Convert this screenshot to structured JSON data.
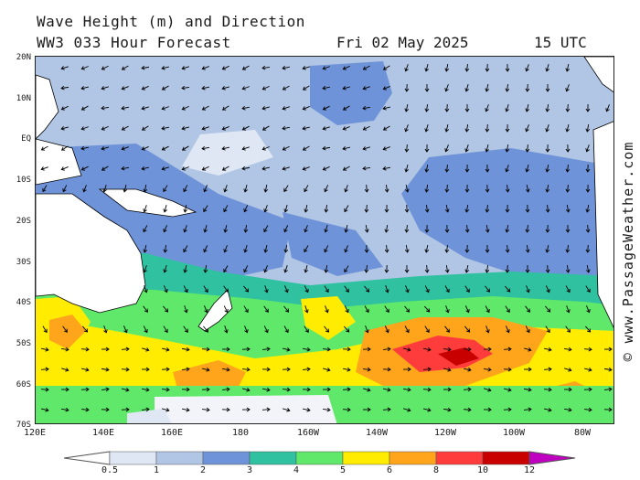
{
  "header": {
    "title": "Wave Height (m) and Direction",
    "model_line": "WW3 033 Hour Forecast",
    "date": "Fri 02 May 2025",
    "time": "15 UTC"
  },
  "credit": "© www.PassageWeather.com",
  "axes": {
    "lat_labels": [
      "20N",
      "10N",
      "EQ",
      "10S",
      "20S",
      "30S",
      "40S",
      "50S",
      "60S",
      "70S"
    ],
    "lon_labels": [
      "120E",
      "140E",
      "160E",
      "180",
      "160W",
      "140W",
      "120W",
      "100W",
      "80W"
    ]
  },
  "legend": {
    "labels": [
      "0.5",
      "1",
      "2",
      "3",
      "4",
      "5",
      "6",
      "8",
      "10",
      "12"
    ],
    "colors": [
      "#dfe7f4",
      "#b1c5e4",
      "#6f93d8",
      "#2fc1a0",
      "#5fe86a",
      "#ffec00",
      "#ffa51c",
      "#ff3c3c",
      "#c80000",
      "#b400b4"
    ],
    "extend_low_color": "#ffffff",
    "extend_high_color": "#c000c0"
  },
  "map_colors": {
    "land": "#ffffff",
    "coast": "#000000",
    "arrow": "#000000",
    "ice": "#f2f4fa"
  }
}
